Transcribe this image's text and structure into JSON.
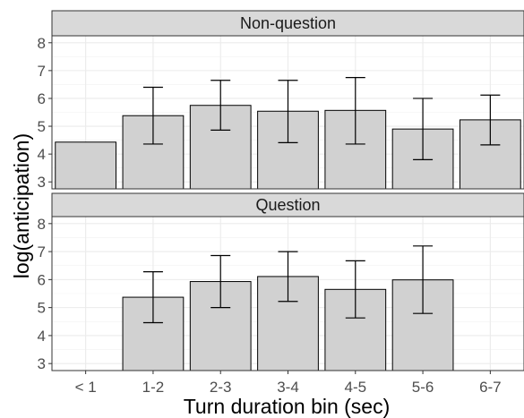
{
  "chart_data": {
    "type": "bar",
    "xlabel": "Turn duration bin (sec)",
    "ylabel": "log(anticipation)",
    "categories": [
      "< 1",
      "1-2",
      "2-3",
      "3-4",
      "4-5",
      "5-6",
      "6-7"
    ],
    "y_ticks": [
      3,
      4,
      5,
      6,
      7,
      8
    ],
    "ylim": [
      2.75,
      8.25
    ],
    "grid": true,
    "bar_color": "#d1d1d1",
    "bar_edge_color": "#000000",
    "strip_color": "#d9d9d9",
    "panels": [
      {
        "title": "Non-question",
        "values": [
          4.43,
          5.38,
          5.75,
          5.54,
          5.57,
          4.9,
          5.23
        ],
        "error_low": [
          null,
          4.36,
          4.86,
          4.41,
          4.36,
          3.8,
          4.33
        ],
        "error_high": [
          null,
          6.4,
          6.65,
          6.65,
          6.75,
          6.0,
          6.12
        ]
      },
      {
        "title": "Question",
        "values": [
          null,
          5.37,
          5.93,
          6.11,
          5.65,
          5.99,
          null
        ],
        "error_low": [
          null,
          4.46,
          5.0,
          5.22,
          4.63,
          4.79,
          null
        ],
        "error_high": [
          null,
          6.28,
          6.86,
          7.0,
          6.67,
          7.2,
          null
        ]
      }
    ]
  }
}
